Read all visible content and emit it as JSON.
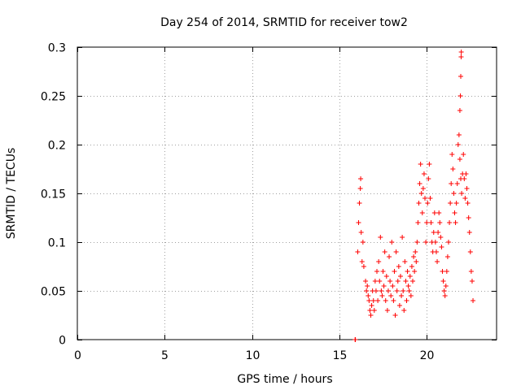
{
  "chart_data": {
    "type": "scatter",
    "title": "Day 254 of 2014, SRMTID for receiver tow2",
    "xlabel": "GPS time / hours",
    "ylabel": "SRMTID / TECUs",
    "xlim": [
      0,
      24
    ],
    "ylim": [
      0,
      0.3
    ],
    "xticks": [
      0,
      5,
      10,
      15,
      20
    ],
    "yticks": [
      0,
      0.05,
      0.1,
      0.15,
      0.2,
      0.25,
      0.3
    ],
    "xtick_labels": [
      "0",
      "5",
      "10",
      "15",
      "20"
    ],
    "ytick_labels": [
      "0",
      "0.05",
      "0.1",
      "0.15",
      "0.2",
      "0.25",
      "0.3"
    ],
    "grid": true,
    "marker": "+",
    "color": "#ff0000",
    "series": [
      {
        "name": "tow2",
        "points": [
          [
            15.9,
            0.0
          ],
          [
            15.92,
            0.0
          ],
          [
            16.05,
            0.09
          ],
          [
            16.1,
            0.12
          ],
          [
            16.15,
            0.14
          ],
          [
            16.2,
            0.155
          ],
          [
            16.22,
            0.165
          ],
          [
            16.25,
            0.11
          ],
          [
            16.3,
            0.08
          ],
          [
            16.35,
            0.1
          ],
          [
            16.4,
            0.075
          ],
          [
            16.5,
            0.06
          ],
          [
            16.55,
            0.05
          ],
          [
            16.6,
            0.055
          ],
          [
            16.65,
            0.045
          ],
          [
            16.7,
            0.04
          ],
          [
            16.75,
            0.03
          ],
          [
            16.8,
            0.025
          ],
          [
            16.85,
            0.035
          ],
          [
            16.9,
            0.05
          ],
          [
            16.95,
            0.04
          ],
          [
            17.0,
            0.03
          ],
          [
            17.05,
            0.06
          ],
          [
            17.1,
            0.05
          ],
          [
            17.15,
            0.07
          ],
          [
            17.2,
            0.04
          ],
          [
            17.25,
            0.08
          ],
          [
            17.3,
            0.06
          ],
          [
            17.35,
            0.105
          ],
          [
            17.4,
            0.05
          ],
          [
            17.45,
            0.045
          ],
          [
            17.5,
            0.07
          ],
          [
            17.55,
            0.055
          ],
          [
            17.6,
            0.09
          ],
          [
            17.65,
            0.04
          ],
          [
            17.7,
            0.065
          ],
          [
            17.75,
            0.03
          ],
          [
            17.8,
            0.05
          ],
          [
            17.85,
            0.085
          ],
          [
            17.9,
            0.06
          ],
          [
            17.95,
            0.045
          ],
          [
            18.0,
            0.1
          ],
          [
            18.05,
            0.055
          ],
          [
            18.1,
            0.04
          ],
          [
            18.15,
            0.07
          ],
          [
            18.2,
            0.025
          ],
          [
            18.25,
            0.09
          ],
          [
            18.3,
            0.05
          ],
          [
            18.35,
            0.06
          ],
          [
            18.4,
            0.075
          ],
          [
            18.45,
            0.035
          ],
          [
            18.5,
            0.065
          ],
          [
            18.55,
            0.045
          ],
          [
            18.6,
            0.105
          ],
          [
            18.65,
            0.05
          ],
          [
            18.7,
            0.03
          ],
          [
            18.75,
            0.08
          ],
          [
            18.8,
            0.06
          ],
          [
            18.85,
            0.04
          ],
          [
            18.9,
            0.07
          ],
          [
            18.95,
            0.055
          ],
          [
            19.0,
            0.05
          ],
          [
            19.05,
            0.065
          ],
          [
            19.1,
            0.045
          ],
          [
            19.15,
            0.075
          ],
          [
            19.2,
            0.06
          ],
          [
            19.25,
            0.085
          ],
          [
            19.3,
            0.07
          ],
          [
            19.35,
            0.09
          ],
          [
            19.4,
            0.08
          ],
          [
            19.45,
            0.1
          ],
          [
            19.5,
            0.12
          ],
          [
            19.55,
            0.14
          ],
          [
            19.6,
            0.16
          ],
          [
            19.65,
            0.18
          ],
          [
            19.7,
            0.15
          ],
          [
            19.75,
            0.13
          ],
          [
            19.8,
            0.155
          ],
          [
            19.85,
            0.17
          ],
          [
            19.9,
            0.145
          ],
          [
            19.95,
            0.1
          ],
          [
            20.0,
            0.12
          ],
          [
            20.05,
            0.14
          ],
          [
            20.1,
            0.165
          ],
          [
            20.15,
            0.18
          ],
          [
            20.2,
            0.145
          ],
          [
            20.25,
            0.12
          ],
          [
            20.3,
            0.1
          ],
          [
            20.35,
            0.09
          ],
          [
            20.4,
            0.11
          ],
          [
            20.45,
            0.13
          ],
          [
            20.5,
            0.1
          ],
          [
            20.55,
            0.09
          ],
          [
            20.6,
            0.08
          ],
          [
            20.65,
            0.11
          ],
          [
            20.7,
            0.13
          ],
          [
            20.75,
            0.12
          ],
          [
            20.8,
            0.105
          ],
          [
            20.85,
            0.095
          ],
          [
            20.9,
            0.07
          ],
          [
            20.95,
            0.06
          ],
          [
            21.0,
            0.05
          ],
          [
            21.05,
            0.045
          ],
          [
            21.1,
            0.055
          ],
          [
            21.15,
            0.07
          ],
          [
            21.2,
            0.085
          ],
          [
            21.25,
            0.1
          ],
          [
            21.3,
            0.12
          ],
          [
            21.35,
            0.14
          ],
          [
            21.4,
            0.16
          ],
          [
            21.45,
            0.19
          ],
          [
            21.5,
            0.175
          ],
          [
            21.55,
            0.15
          ],
          [
            21.6,
            0.13
          ],
          [
            21.65,
            0.12
          ],
          [
            21.7,
            0.14
          ],
          [
            21.75,
            0.16
          ],
          [
            21.8,
            0.2
          ],
          [
            21.85,
            0.21
          ],
          [
            21.9,
            0.185
          ],
          [
            21.95,
            0.165
          ],
          [
            22.0,
            0.15
          ],
          [
            22.05,
            0.17
          ],
          [
            22.1,
            0.19
          ],
          [
            22.15,
            0.165
          ],
          [
            22.2,
            0.145
          ],
          [
            22.25,
            0.17
          ],
          [
            22.3,
            0.155
          ],
          [
            22.35,
            0.14
          ],
          [
            22.4,
            0.125
          ],
          [
            22.45,
            0.11
          ],
          [
            22.5,
            0.09
          ],
          [
            22.55,
            0.07
          ],
          [
            22.6,
            0.06
          ],
          [
            22.65,
            0.04
          ],
          [
            21.9,
            0.235
          ],
          [
            21.93,
            0.25
          ],
          [
            21.95,
            0.27
          ],
          [
            21.97,
            0.29
          ],
          [
            21.98,
            0.295
          ]
        ]
      }
    ]
  }
}
